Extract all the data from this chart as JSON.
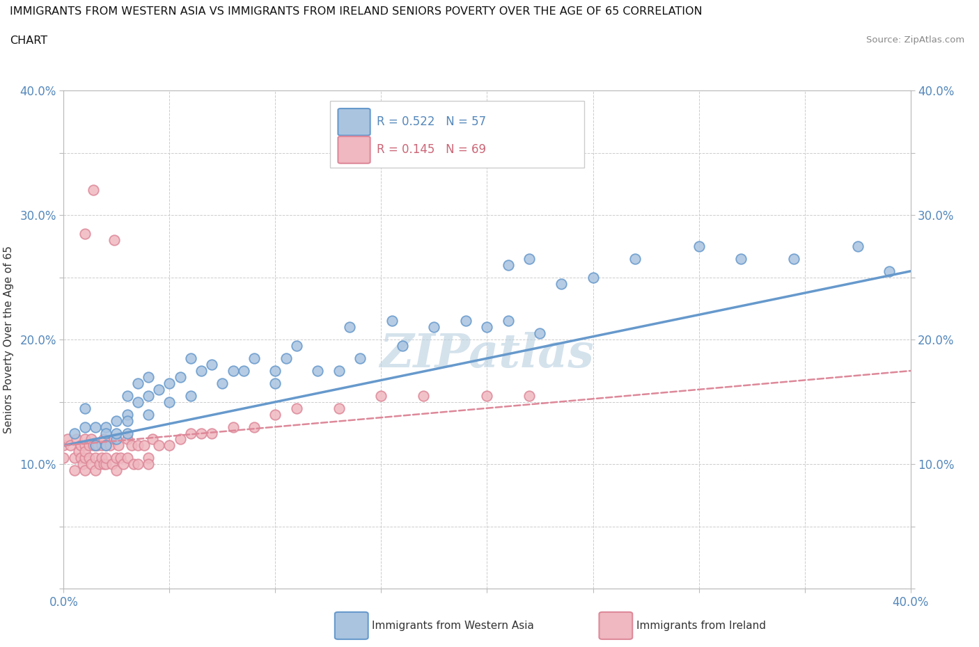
{
  "title_line1": "IMMIGRANTS FROM WESTERN ASIA VS IMMIGRANTS FROM IRELAND SENIORS POVERTY OVER THE AGE OF 65 CORRELATION",
  "title_line2": "CHART",
  "source_text": "Source: ZipAtlas.com",
  "ylabel": "Seniors Poverty Over the Age of 65",
  "xlim": [
    0.0,
    0.4
  ],
  "ylim": [
    0.0,
    0.4
  ],
  "xticks": [
    0.0,
    0.05,
    0.1,
    0.15,
    0.2,
    0.25,
    0.3,
    0.35,
    0.4
  ],
  "yticks": [
    0.0,
    0.05,
    0.1,
    0.15,
    0.2,
    0.25,
    0.3,
    0.35,
    0.4
  ],
  "grid_color": "#cccccc",
  "watermark": "ZIPatlas",
  "watermark_color": "#b8cfe0",
  "tick_label_color": "#5588bb",
  "blue_color": "#6699cc",
  "blue_fill": "#aac4e0",
  "pink_color": "#dd8899",
  "pink_fill": "#f0b8c0",
  "legend_blue_label": "R = 0.522   N = 57",
  "legend_pink_label": "R = 0.145   N = 69",
  "blue_line_start_y": 0.115,
  "blue_line_end_y": 0.255,
  "pink_line_start_y": 0.115,
  "pink_line_end_y": 0.175,
  "blue_scatter_x": [
    0.005,
    0.01,
    0.01,
    0.015,
    0.015,
    0.02,
    0.02,
    0.02,
    0.025,
    0.025,
    0.025,
    0.03,
    0.03,
    0.03,
    0.03,
    0.035,
    0.035,
    0.04,
    0.04,
    0.04,
    0.045,
    0.05,
    0.05,
    0.055,
    0.06,
    0.06,
    0.065,
    0.07,
    0.075,
    0.08,
    0.085,
    0.09,
    0.1,
    0.1,
    0.105,
    0.11,
    0.12,
    0.13,
    0.135,
    0.14,
    0.155,
    0.16,
    0.175,
    0.19,
    0.2,
    0.21,
    0.225,
    0.235,
    0.25,
    0.27,
    0.3,
    0.32,
    0.345,
    0.375,
    0.39,
    0.21,
    0.22
  ],
  "blue_scatter_y": [
    0.125,
    0.13,
    0.145,
    0.115,
    0.13,
    0.13,
    0.115,
    0.125,
    0.12,
    0.135,
    0.125,
    0.125,
    0.14,
    0.155,
    0.135,
    0.15,
    0.165,
    0.14,
    0.155,
    0.17,
    0.16,
    0.15,
    0.165,
    0.17,
    0.155,
    0.185,
    0.175,
    0.18,
    0.165,
    0.175,
    0.175,
    0.185,
    0.175,
    0.165,
    0.185,
    0.195,
    0.175,
    0.175,
    0.21,
    0.185,
    0.215,
    0.195,
    0.21,
    0.215,
    0.21,
    0.215,
    0.205,
    0.245,
    0.25,
    0.265,
    0.275,
    0.265,
    0.265,
    0.275,
    0.255,
    0.26,
    0.265
  ],
  "pink_scatter_x": [
    0.0,
    0.0,
    0.002,
    0.003,
    0.005,
    0.005,
    0.006,
    0.007,
    0.008,
    0.008,
    0.009,
    0.01,
    0.01,
    0.01,
    0.01,
    0.01,
    0.012,
    0.012,
    0.013,
    0.013,
    0.014,
    0.015,
    0.015,
    0.015,
    0.016,
    0.017,
    0.018,
    0.018,
    0.019,
    0.019,
    0.02,
    0.02,
    0.02,
    0.022,
    0.023,
    0.024,
    0.025,
    0.025,
    0.026,
    0.027,
    0.028,
    0.03,
    0.03,
    0.032,
    0.033,
    0.035,
    0.035,
    0.038,
    0.04,
    0.04,
    0.042,
    0.045,
    0.05,
    0.055,
    0.06,
    0.065,
    0.07,
    0.08,
    0.09,
    0.1,
    0.11,
    0.13,
    0.15,
    0.17,
    0.2,
    0.22,
    0.024,
    0.014,
    0.01
  ],
  "pink_scatter_y": [
    0.115,
    0.105,
    0.12,
    0.115,
    0.105,
    0.095,
    0.12,
    0.11,
    0.115,
    0.105,
    0.1,
    0.115,
    0.105,
    0.095,
    0.12,
    0.11,
    0.115,
    0.105,
    0.12,
    0.1,
    0.115,
    0.115,
    0.105,
    0.095,
    0.115,
    0.1,
    0.115,
    0.105,
    0.1,
    0.12,
    0.1,
    0.115,
    0.105,
    0.115,
    0.1,
    0.12,
    0.105,
    0.095,
    0.115,
    0.105,
    0.1,
    0.12,
    0.105,
    0.115,
    0.1,
    0.115,
    0.1,
    0.115,
    0.105,
    0.1,
    0.12,
    0.115,
    0.115,
    0.12,
    0.125,
    0.125,
    0.125,
    0.13,
    0.13,
    0.14,
    0.145,
    0.145,
    0.155,
    0.155,
    0.155,
    0.155,
    0.28,
    0.32,
    0.285
  ]
}
